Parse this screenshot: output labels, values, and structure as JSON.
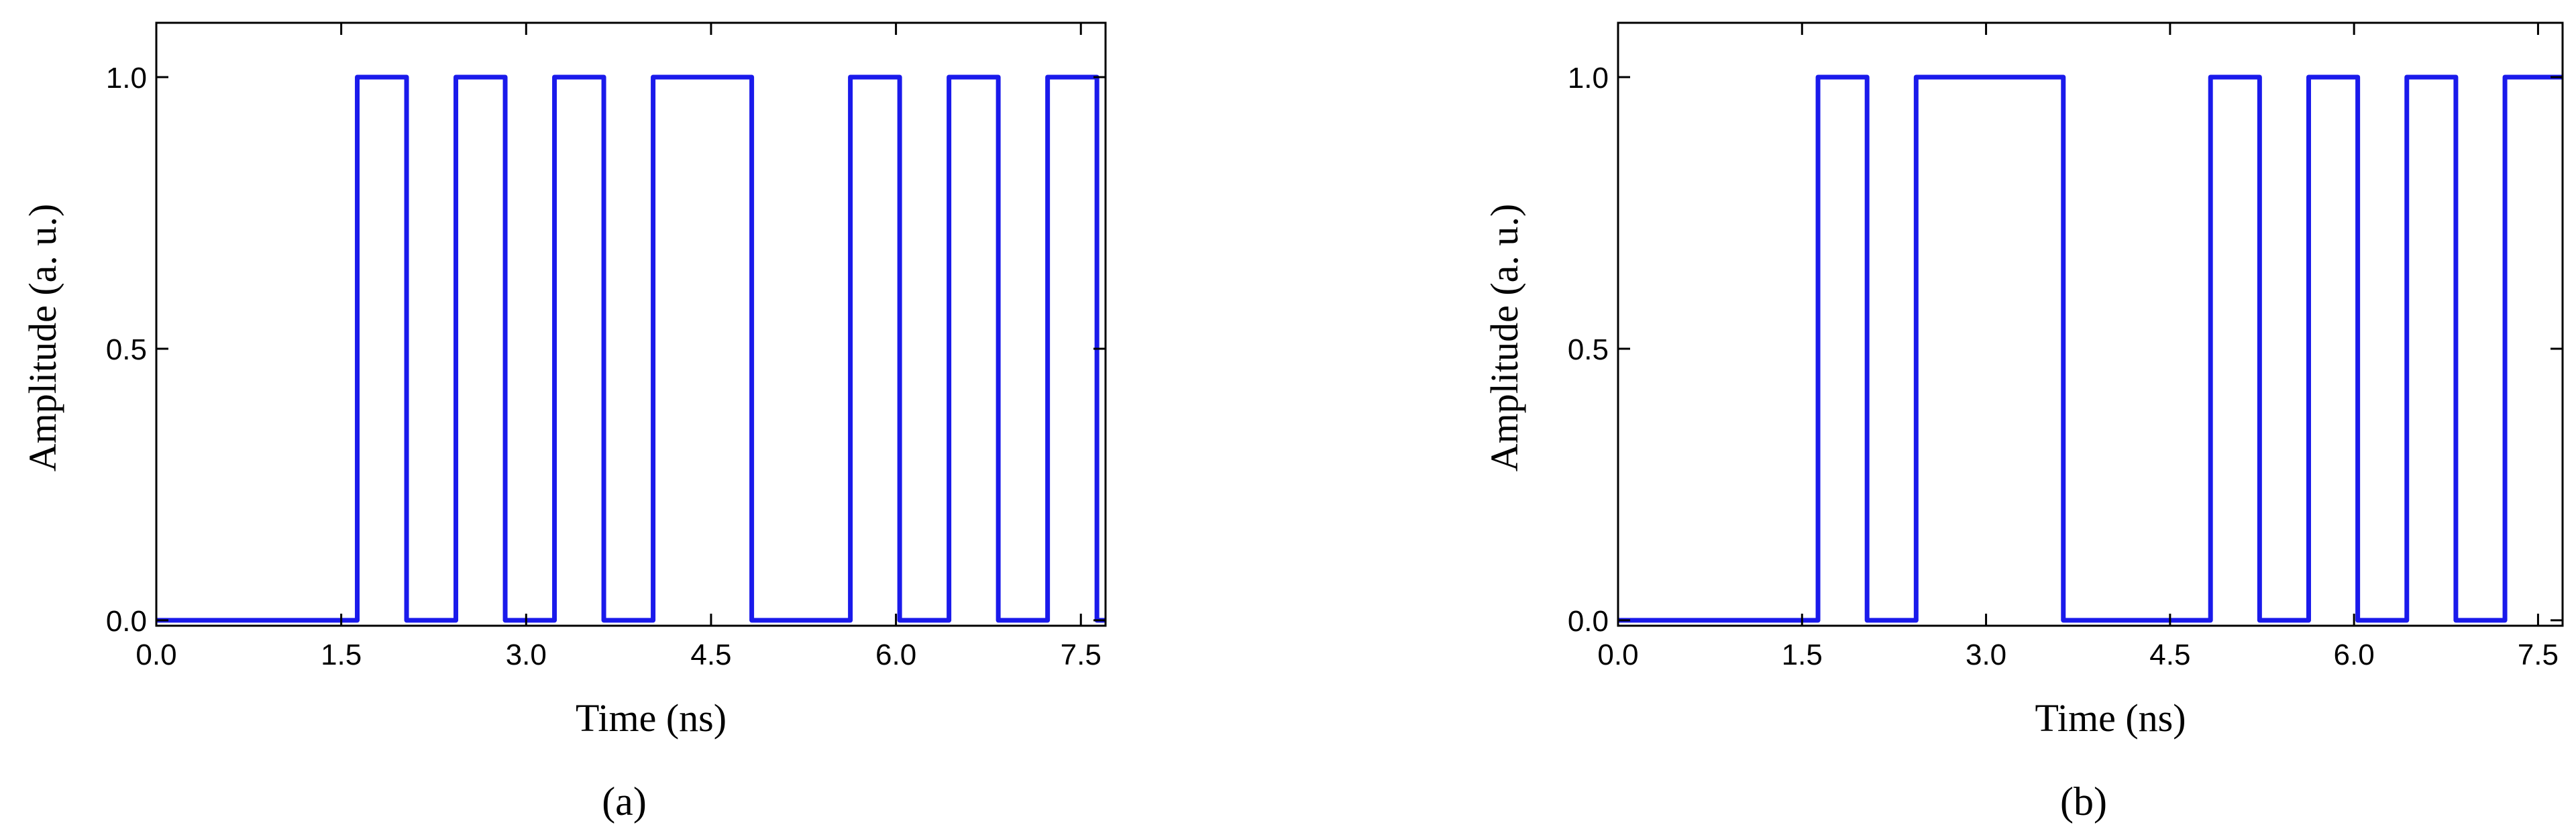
{
  "chart_data": [
    {
      "type": "line",
      "x_label": "Time (ns)",
      "y_label": "Amplitude (a. u.)",
      "caption": "(a)",
      "color": "#1a1aeb",
      "xlim": [
        0,
        7.7
      ],
      "ylim": [
        -0.01,
        1.1
      ],
      "xticks": [
        {
          "value": 0,
          "label": "0.0"
        },
        1.5,
        {
          "value": 3,
          "label": "3.0"
        },
        4.5,
        {
          "value": 6,
          "label": "6.0"
        },
        7.5
      ],
      "yticks": [
        {
          "value": 0,
          "label": "0.0"
        },
        0.5,
        {
          "value": 1,
          "label": "1.0"
        }
      ],
      "x": [
        0,
        1.63,
        1.63,
        2.03,
        2.03,
        2.43,
        2.43,
        2.83,
        2.83,
        3.23,
        3.23,
        3.63,
        3.63,
        4.03,
        4.03,
        4.83,
        4.83,
        5.63,
        5.63,
        6.03,
        6.03,
        6.43,
        6.43,
        6.83,
        6.83,
        7.23,
        7.23,
        7.63,
        7.63,
        7.7
      ],
      "values": [
        0,
        0,
        1,
        1,
        0,
        0,
        1,
        1,
        0,
        0,
        1,
        1,
        0,
        0,
        1,
        1,
        0,
        0,
        1,
        1,
        0,
        0,
        1,
        1,
        0,
        0,
        1,
        1,
        0,
        0
      ]
    },
    {
      "type": "line",
      "x_label": "Time (ns)",
      "y_label": "Amplitude (a. u.)",
      "caption": "(b)",
      "color": "#1a1aeb",
      "xlim": [
        0,
        7.7
      ],
      "ylim": [
        -0.01,
        1.1
      ],
      "xticks": [
        {
          "value": 0,
          "label": "0.0"
        },
        1.5,
        {
          "value": 3,
          "label": "3.0"
        },
        4.5,
        {
          "value": 6,
          "label": "6.0"
        },
        7.5
      ],
      "yticks": [
        {
          "value": 0,
          "label": "0.0"
        },
        0.5,
        {
          "value": 1,
          "label": "1.0"
        }
      ],
      "x": [
        0,
        1.63,
        1.63,
        2.03,
        2.03,
        2.43,
        2.43,
        3.63,
        3.63,
        4.83,
        4.83,
        5.23,
        5.23,
        5.63,
        5.63,
        6.03,
        6.03,
        6.43,
        6.43,
        6.83,
        6.83,
        7.23,
        7.23,
        7.7
      ],
      "values": [
        0,
        0,
        1,
        1,
        0,
        0,
        1,
        1,
        0,
        0,
        1,
        1,
        0,
        0,
        1,
        1,
        0,
        0,
        1,
        1,
        0,
        0,
        1,
        1
      ]
    }
  ]
}
